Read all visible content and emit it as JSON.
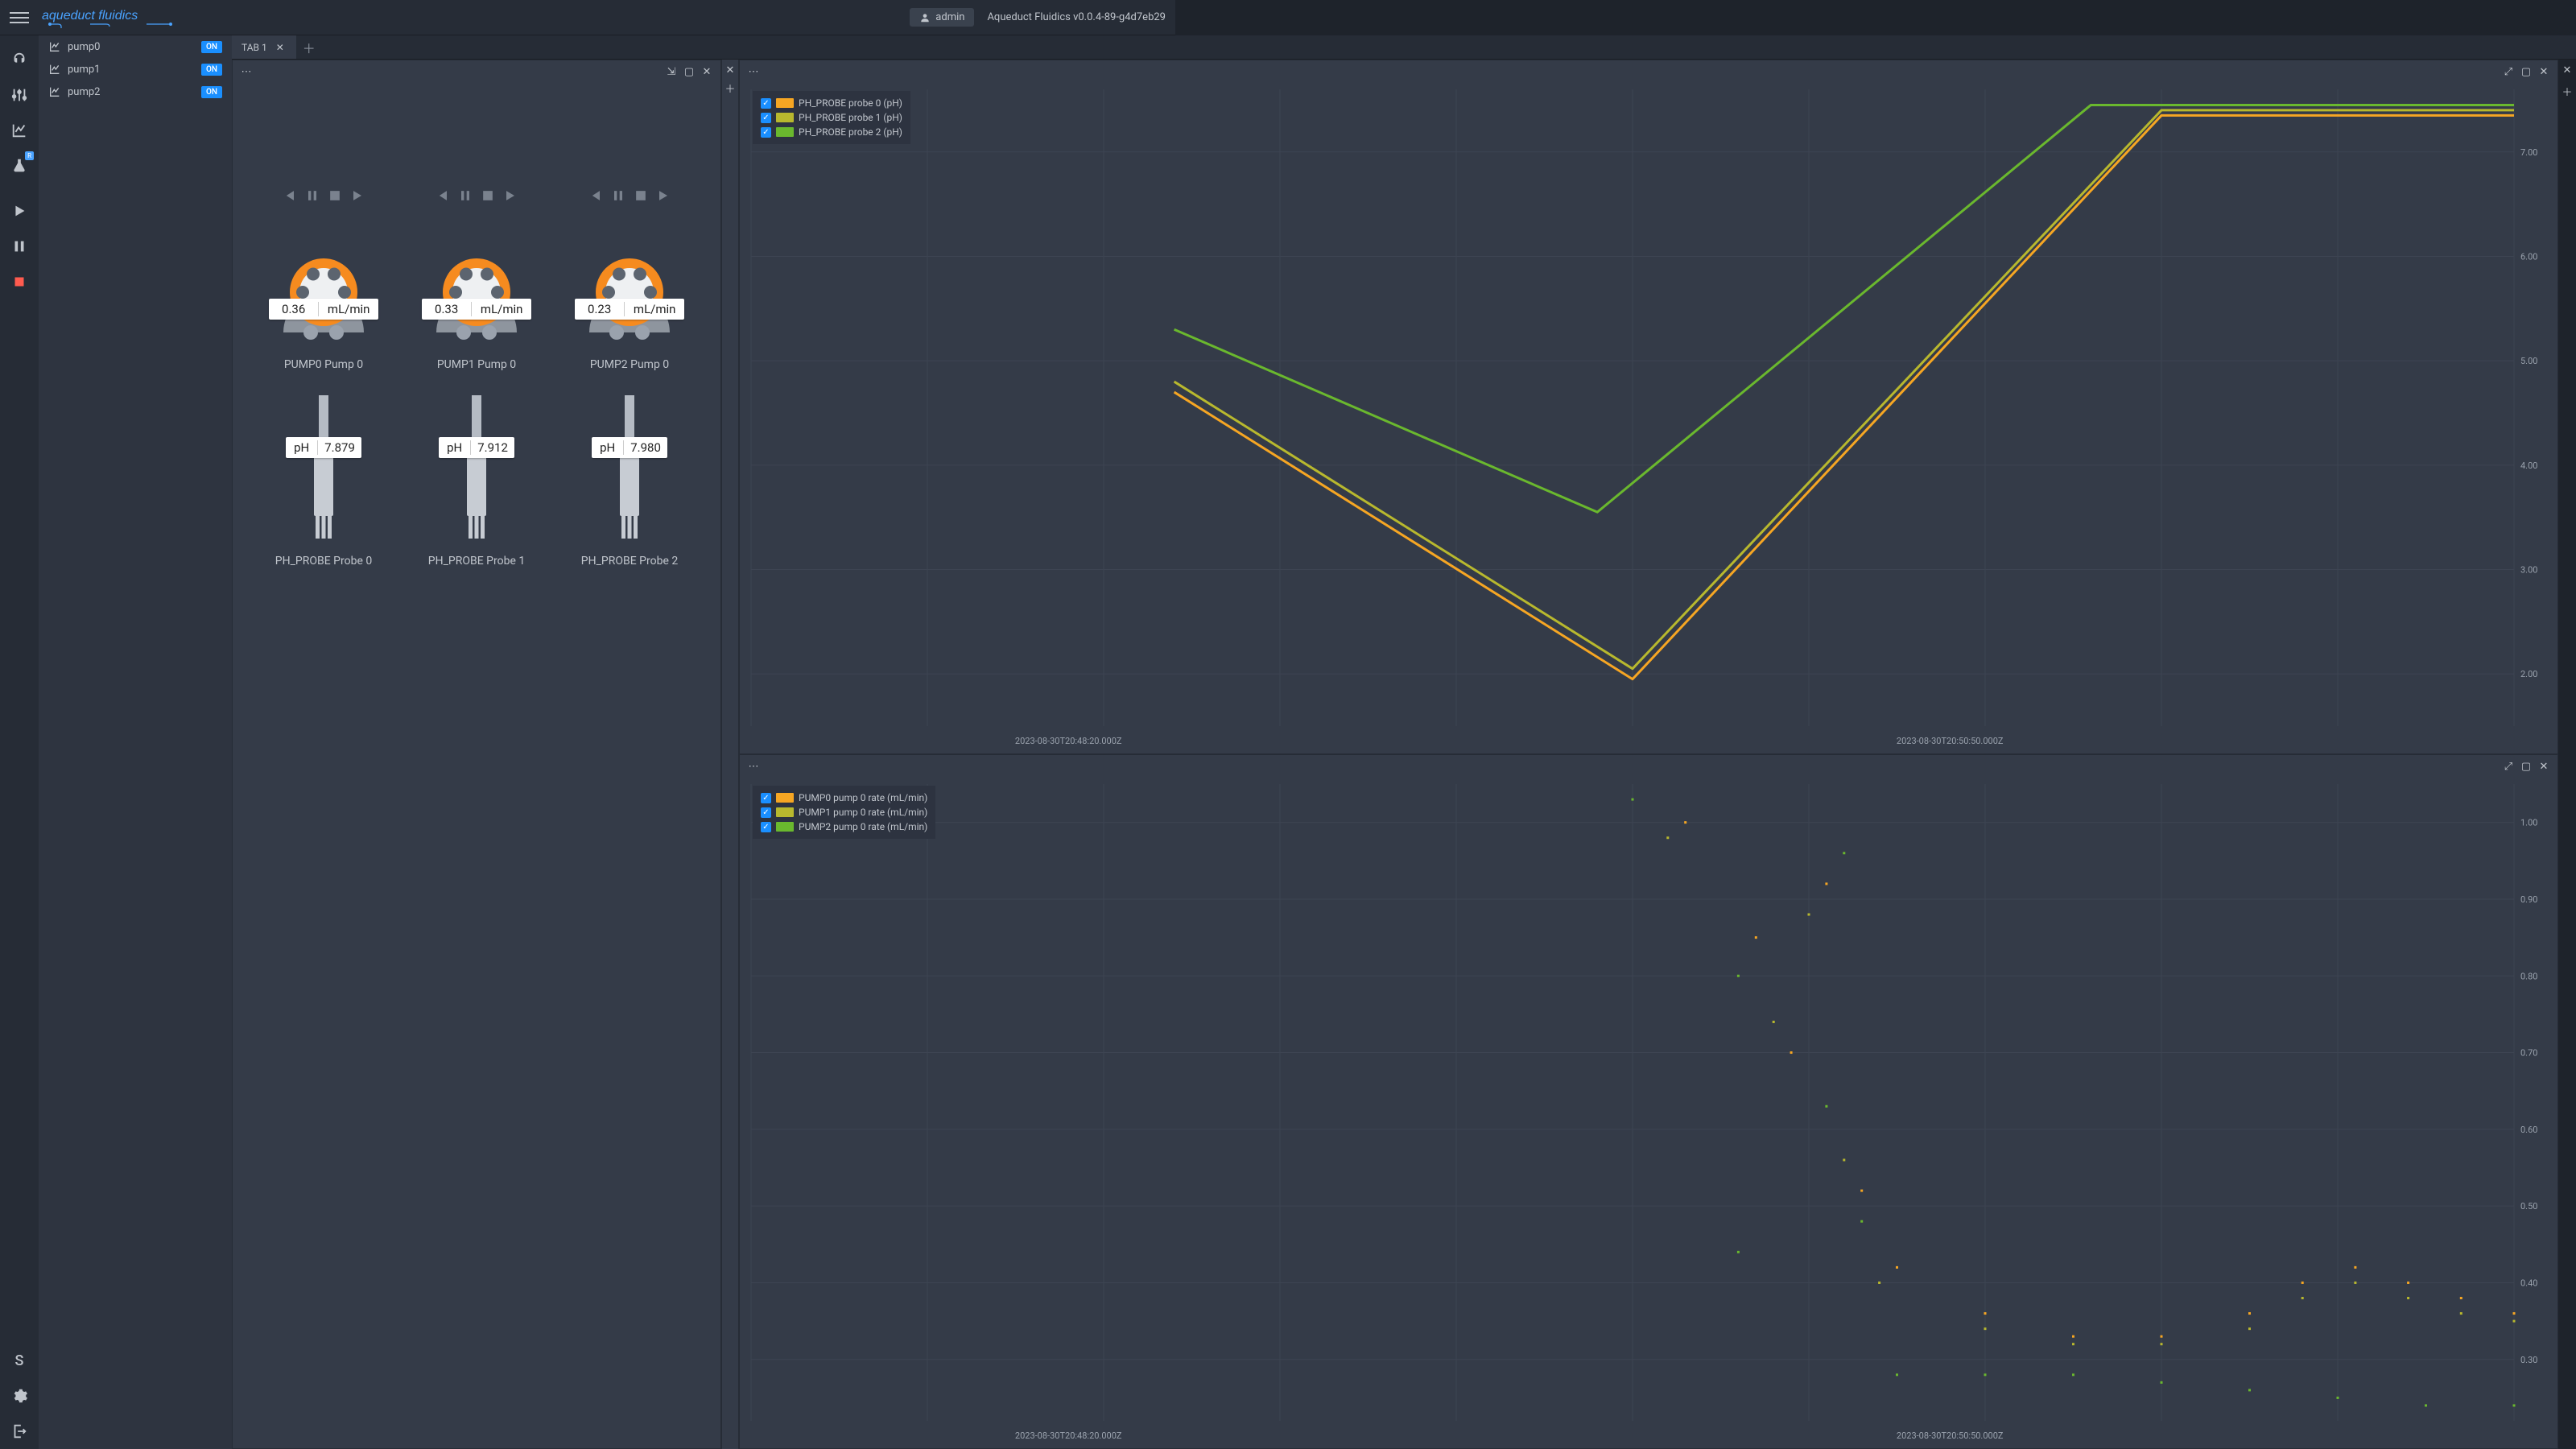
{
  "header": {
    "logo_text": "aqueduct fluidics",
    "logo_colors": {
      "text": "#4aa3ff",
      "underline": "#4aa3ff"
    },
    "user_label": "admin",
    "version": "Aqueduct Fluidics v0.0.4-89-g4d7eb29"
  },
  "rail": {
    "icons": [
      "logo",
      "sliders",
      "chart",
      "flask",
      "play",
      "pause",
      "stop"
    ],
    "flask_badge": "R",
    "stop_color": "#ff5b4f",
    "bottom_icons": [
      "S",
      "gear",
      "exit"
    ]
  },
  "sidebar": {
    "devices": [
      {
        "name": "pump0",
        "status": "ON"
      },
      {
        "name": "pump1",
        "status": "ON"
      },
      {
        "name": "pump2",
        "status": "ON"
      }
    ],
    "status_bg": "#1a8fff"
  },
  "tabs": {
    "items": [
      {
        "label": "TAB 1"
      }
    ]
  },
  "pumps": [
    {
      "rate": "0.36",
      "unit": "mL/min",
      "label": "PUMP0 Pump 0"
    },
    {
      "rate": "0.33",
      "unit": "mL/min",
      "label": "PUMP1 Pump 0"
    },
    {
      "rate": "0.23",
      "unit": "mL/min",
      "label": "PUMP2 Pump 0"
    }
  ],
  "probes": [
    {
      "ph_label": "pH",
      "value": "7.879",
      "label": "PH_PROBE Probe 0"
    },
    {
      "ph_label": "pH",
      "value": "7.912",
      "label": "PH_PROBE Probe 1"
    },
    {
      "ph_label": "pH",
      "value": "7.980",
      "label": "PH_PROBE Probe 2"
    }
  ],
  "pump_svg": {
    "body_fill": "#8e959e",
    "ring_fill": "#f68b1f",
    "hub_fill": "#eef0f2",
    "roller_fill": "#5c646f"
  },
  "charts": {
    "ph": {
      "legend": [
        {
          "label": "PH_PROBE probe 0 (pH)",
          "color": "#f6a623"
        },
        {
          "label": "PH_PROBE probe 1 (pH)",
          "color": "#b8b82e"
        },
        {
          "label": "PH_PROBE probe 2 (pH)",
          "color": "#6ab82e"
        }
      ],
      "y_ticks": [
        "7.00",
        "6.00",
        "5.00",
        "4.00",
        "3.00",
        "2.00"
      ],
      "y_range": [
        1.5,
        7.6
      ],
      "x_labels": [
        "2023-08-30T20:48:20.000Z",
        "2023-08-30T20:50:50.000Z"
      ],
      "grid_color": "#3d4452",
      "line_width": 3,
      "series": [
        {
          "color": "#6ab82e",
          "points": [
            [
              0.24,
              5.3
            ],
            [
              0.48,
              3.55
            ],
            [
              0.76,
              7.45
            ],
            [
              1.0,
              7.45
            ]
          ]
        },
        {
          "color": "#b8b82e",
          "points": [
            [
              0.24,
              4.8
            ],
            [
              0.5,
              2.05
            ],
            [
              0.8,
              7.4
            ],
            [
              1.0,
              7.4
            ]
          ]
        },
        {
          "color": "#f6a623",
          "points": [
            [
              0.24,
              4.7
            ],
            [
              0.5,
              1.95
            ],
            [
              0.8,
              7.35
            ],
            [
              1.0,
              7.35
            ]
          ]
        }
      ]
    },
    "rate": {
      "legend": [
        {
          "label": "PUMP0 pump 0 rate (mL/min)",
          "color": "#f6a623"
        },
        {
          "label": "PUMP1 pump 0 rate (mL/min)",
          "color": "#b8b82e"
        },
        {
          "label": "PUMP2 pump 0 rate (mL/min)",
          "color": "#6ab82e"
        }
      ],
      "y_ticks": [
        "1.00",
        "0.90",
        "0.80",
        "0.70",
        "0.60",
        "0.50",
        "0.40",
        "0.30"
      ],
      "y_range": [
        0.22,
        1.05
      ],
      "x_labels": [
        "2023-08-30T20:48:20.000Z",
        "2023-08-30T20:50:50.000Z"
      ],
      "grid_color": "#3d4452",
      "marker_size": 3,
      "series": [
        {
          "color": "#6ab82e",
          "points": [
            [
              0.5,
              1.03
            ],
            [
              0.56,
              0.8
            ],
            [
              0.56,
              0.44
            ],
            [
              0.61,
              0.63
            ],
            [
              0.62,
              0.96
            ],
            [
              0.63,
              0.48
            ],
            [
              0.65,
              0.28
            ],
            [
              0.7,
              0.28
            ],
            [
              0.75,
              0.28
            ],
            [
              0.8,
              0.27
            ],
            [
              0.85,
              0.26
            ],
            [
              0.9,
              0.25
            ],
            [
              0.95,
              0.24
            ],
            [
              1.0,
              0.24
            ]
          ]
        },
        {
          "color": "#b8b82e",
          "points": [
            [
              0.52,
              0.98
            ],
            [
              0.58,
              0.74
            ],
            [
              0.6,
              0.88
            ],
            [
              0.62,
              0.56
            ],
            [
              0.64,
              0.4
            ],
            [
              0.7,
              0.34
            ],
            [
              0.75,
              0.32
            ],
            [
              0.8,
              0.32
            ],
            [
              0.85,
              0.34
            ],
            [
              0.88,
              0.38
            ],
            [
              0.91,
              0.4
            ],
            [
              0.94,
              0.38
            ],
            [
              0.97,
              0.36
            ],
            [
              1.0,
              0.35
            ]
          ]
        },
        {
          "color": "#f6a623",
          "points": [
            [
              0.53,
              1.0
            ],
            [
              0.57,
              0.85
            ],
            [
              0.59,
              0.7
            ],
            [
              0.61,
              0.92
            ],
            [
              0.63,
              0.52
            ],
            [
              0.65,
              0.42
            ],
            [
              0.7,
              0.36
            ],
            [
              0.75,
              0.33
            ],
            [
              0.8,
              0.33
            ],
            [
              0.85,
              0.36
            ],
            [
              0.88,
              0.4
            ],
            [
              0.91,
              0.42
            ],
            [
              0.94,
              0.4
            ],
            [
              0.97,
              0.38
            ],
            [
              1.0,
              0.36
            ]
          ]
        }
      ]
    }
  },
  "colors": {
    "bg": "#1e232b",
    "panel": "#343b48",
    "rail": "#262c36",
    "text": "#c0c5cc",
    "muted": "#7a828e"
  }
}
